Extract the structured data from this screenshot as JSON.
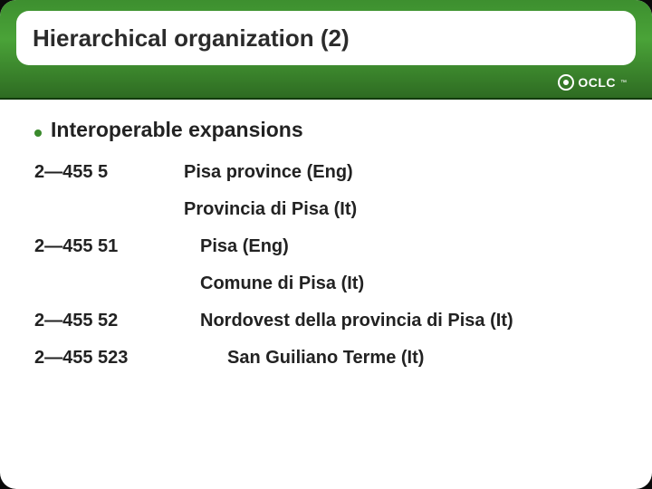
{
  "header": {
    "title": "Hierarchical organization (2)",
    "logo_text": "OCLC",
    "logo_tm": "™",
    "band_gradient_top": "#3d8f2f",
    "band_gradient_mid": "#4aa338",
    "band_gradient_bottom": "#2e6b22"
  },
  "content": {
    "bullet": "Interoperable expansions",
    "bullet_color": "#3a8a2c",
    "rows": [
      {
        "code": "2—455 5",
        "desc": "Pisa province (Eng)",
        "indent": 0
      },
      {
        "code": "",
        "desc": "Provincia di Pisa (It)",
        "indent": 0
      },
      {
        "code": "2—455 51",
        "desc": "Pisa (Eng)",
        "indent": 1
      },
      {
        "code": "",
        "desc": "Comune di Pisa (It)",
        "indent": 1
      },
      {
        "code": "2—455 52",
        "desc": "Nordovest della provincia di Pisa (It)",
        "indent": 1
      },
      {
        "code": "2—455 523",
        "desc": "San Guiliano Terme (It)",
        "indent": 2
      }
    ]
  },
  "colors": {
    "text": "#222222",
    "background": "#ffffff",
    "slide_frame": "#0a0a0a"
  },
  "typography": {
    "title_fontsize": 26,
    "bullet_fontsize": 23,
    "row_fontsize": 20,
    "font_family": "Verdana"
  }
}
